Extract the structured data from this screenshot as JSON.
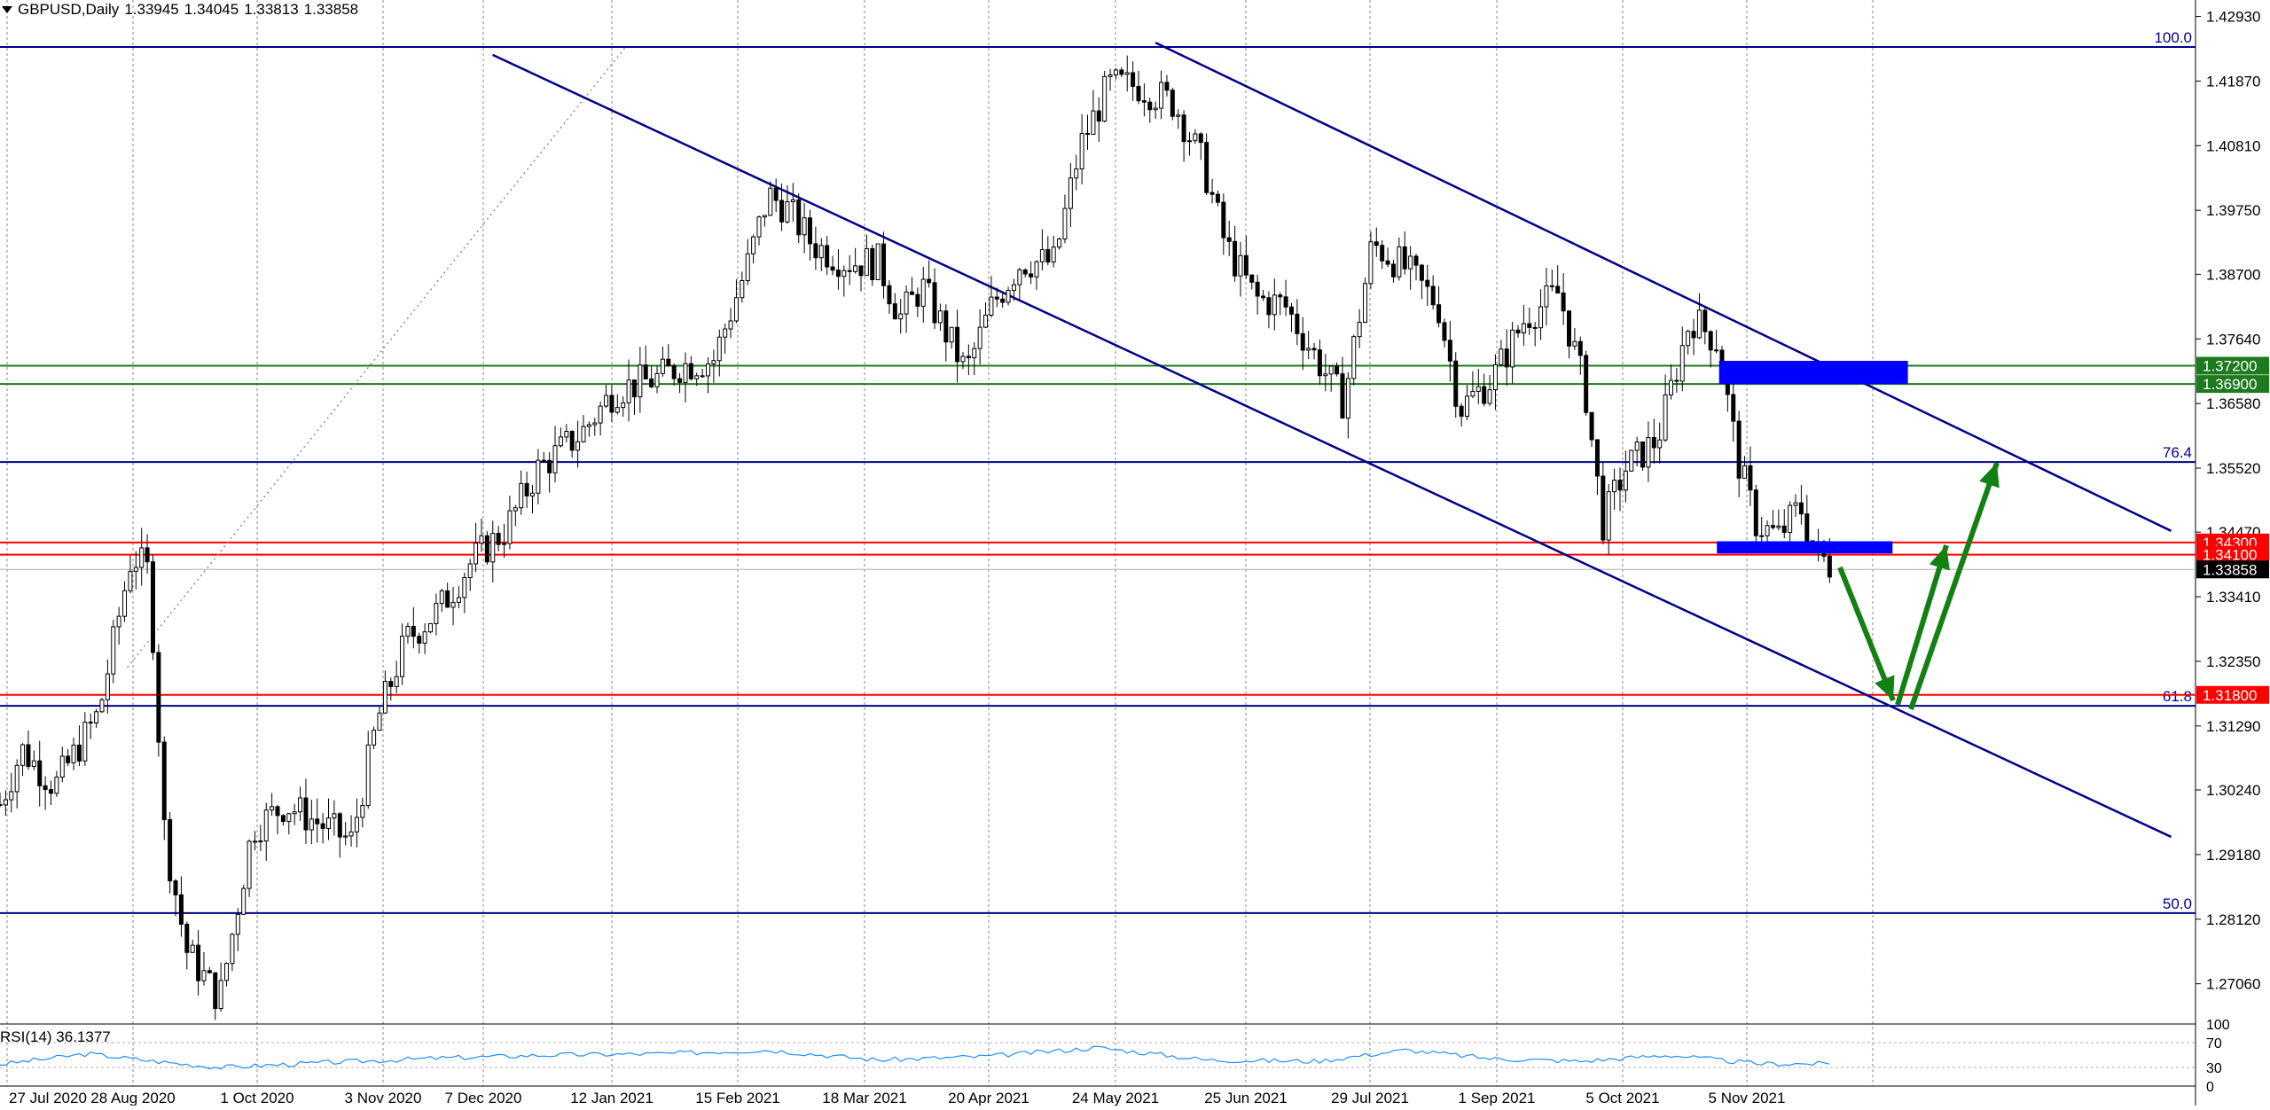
{
  "header": {
    "symbol_tf": "GBPUSD,Daily",
    "open": "1.33945",
    "high": "1.34045",
    "low": "1.33813",
    "close": "1.33858"
  },
  "rsi": {
    "label": "RSI(14) 36.1377",
    "levels": [
      "100",
      "70",
      "30",
      "0"
    ]
  },
  "chart_data": {
    "type": "candlestick",
    "symbol": "GBPUSD",
    "timeframe": "Daily",
    "ylim": [
      1.264,
      1.432
    ],
    "price_ticks": [
      "1.42930",
      "1.41870",
      "1.40810",
      "1.39750",
      "1.38700",
      "1.37640",
      "1.36580",
      "1.35520",
      "1.34470",
      "1.33410",
      "1.32350",
      "1.31290",
      "1.30240",
      "1.29180",
      "1.28120",
      "1.27060"
    ],
    "date_ticks": [
      "27 Jul 2020",
      "28 Aug 2020",
      "1 Oct 2020",
      "3 Nov 2020",
      "7 Dec 2020",
      "12 Jan 2021",
      "15 Feb 2021",
      "18 Mar 2021",
      "20 Apr 2021",
      "24 May 2021",
      "25 Jun 2021",
      "29 Jul 2021",
      "1 Sep 2021",
      "5 Oct 2021",
      "5 Nov 2021"
    ],
    "fib_levels": [
      {
        "label": "100.0",
        "price": 1.4243
      },
      {
        "label": "76.4",
        "price": 1.3562
      },
      {
        "label": "61.8",
        "price": 1.3162
      },
      {
        "label": "50.0",
        "price": 1.2822
      }
    ],
    "level_labels": [
      {
        "text": "1.37200",
        "price": 1.372,
        "color": "#1e7a1e"
      },
      {
        "text": "1.36900",
        "price": 1.369,
        "color": "#1e7a1e"
      },
      {
        "text": "1.34300",
        "price": 1.343,
        "color": "#ff0000"
      },
      {
        "text": "1.34100",
        "price": 1.341,
        "color": "#ff0000"
      },
      {
        "text": "1.33858",
        "price": 1.33858,
        "color": "#000000"
      },
      {
        "text": "1.31800",
        "price": 1.318,
        "color": "#ff0000"
      }
    ],
    "channel": {
      "upper": [
        [
          0.2244,
          1.423
        ],
        [
          0.5263,
          1.425
        ],
        [
          0.9889,
          1.3449
        ]
      ],
      "lower": [
        [
          0.2244,
          1.423
        ],
        [
          0.9889,
          1.2947
        ]
      ]
    },
    "close_path": [
      [
        0.0,
        1.3
      ],
      [
        0.01,
        1.309
      ],
      [
        0.025,
        1.303
      ],
      [
        0.045,
        1.315
      ],
      [
        0.06,
        1.341
      ],
      [
        0.068,
        1.338
      ],
      [
        0.075,
        1.295
      ],
      [
        0.085,
        1.276
      ],
      [
        0.1,
        1.268
      ],
      [
        0.115,
        1.296
      ],
      [
        0.13,
        1.3
      ],
      [
        0.145,
        1.297
      ],
      [
        0.16,
        1.294
      ],
      [
        0.172,
        1.314
      ],
      [
        0.185,
        1.327
      ],
      [
        0.2,
        1.332
      ],
      [
        0.215,
        1.34
      ],
      [
        0.23,
        1.345
      ],
      [
        0.245,
        1.355
      ],
      [
        0.265,
        1.361
      ],
      [
        0.28,
        1.368
      ],
      [
        0.3,
        1.37
      ],
      [
        0.31,
        1.372
      ],
      [
        0.325,
        1.373
      ],
      [
        0.34,
        1.388
      ],
      [
        0.35,
        1.4
      ],
      [
        0.358,
        1.398
      ],
      [
        0.37,
        1.392
      ],
      [
        0.385,
        1.389
      ],
      [
        0.4,
        1.389
      ],
      [
        0.41,
        1.38
      ],
      [
        0.42,
        1.385
      ],
      [
        0.43,
        1.378
      ],
      [
        0.44,
        1.371
      ],
      [
        0.452,
        1.382
      ],
      [
        0.465,
        1.389
      ],
      [
        0.48,
        1.389
      ],
      [
        0.492,
        1.408
      ],
      [
        0.505,
        1.418
      ],
      [
        0.518,
        1.418
      ],
      [
        0.535,
        1.415
      ],
      [
        0.548,
        1.405
      ],
      [
        0.558,
        1.392
      ],
      [
        0.572,
        1.383
      ],
      [
        0.585,
        1.382
      ],
      [
        0.6,
        1.373
      ],
      [
        0.612,
        1.366
      ],
      [
        0.625,
        1.392
      ],
      [
        0.64,
        1.388
      ],
      [
        0.655,
        1.382
      ],
      [
        0.665,
        1.365
      ],
      [
        0.68,
        1.37
      ],
      [
        0.695,
        1.38
      ],
      [
        0.71,
        1.384
      ],
      [
        0.722,
        1.368
      ],
      [
        0.73,
        1.346
      ],
      [
        0.74,
        1.355
      ],
      [
        0.755,
        1.36
      ],
      [
        0.77,
        1.38
      ],
      [
        0.782,
        1.376
      ],
      [
        0.792,
        1.356
      ],
      [
        0.8,
        1.346
      ],
      [
        0.81,
        1.344
      ],
      [
        0.82,
        1.349
      ],
      [
        0.826,
        1.342
      ],
      [
        0.834,
        1.339
      ]
    ],
    "rsi_path": [
      [
        0,
        35
      ],
      [
        0.04,
        52
      ],
      [
        0.07,
        40
      ],
      [
        0.1,
        30
      ],
      [
        0.15,
        38
      ],
      [
        0.2,
        45
      ],
      [
        0.25,
        50
      ],
      [
        0.3,
        52
      ],
      [
        0.35,
        58
      ],
      [
        0.4,
        42
      ],
      [
        0.45,
        48
      ],
      [
        0.5,
        62
      ],
      [
        0.55,
        42
      ],
      [
        0.6,
        40
      ],
      [
        0.64,
        58
      ],
      [
        0.68,
        44
      ],
      [
        0.72,
        40
      ],
      [
        0.76,
        50
      ],
      [
        0.8,
        36
      ],
      [
        0.834,
        36
      ]
    ]
  }
}
